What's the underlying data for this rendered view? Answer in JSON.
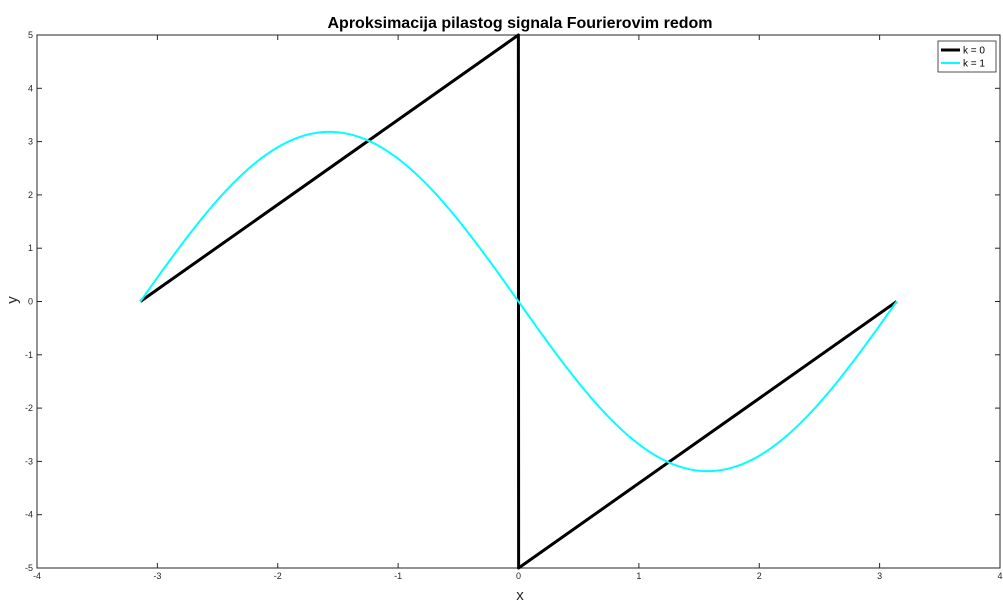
{
  "chart_data": {
    "type": "line",
    "title": "Aproksimacija pilastog signala Fourierovim redom",
    "xlabel": "x",
    "ylabel": "y",
    "xlim": [
      -4,
      4
    ],
    "ylim": [
      -5,
      5
    ],
    "xticks": [
      "-4",
      "-3",
      "-2",
      "-1",
      "0",
      "1",
      "2",
      "3",
      "4"
    ],
    "yticks": [
      "5",
      "4",
      "3",
      "2",
      "1",
      "0",
      "-1",
      "-2",
      "-3",
      "-4",
      "-5"
    ],
    "grid": false,
    "legend_position": "top-right",
    "series": [
      {
        "name": "k = 0",
        "color": "#000000",
        "x": [
          -3.1416,
          -0.001,
          0,
          0.001,
          3.1416
        ],
        "y": [
          0,
          5,
          0,
          -5,
          0
        ]
      },
      {
        "name": "k = 1",
        "color": "#00ffff",
        "x": [
          -3.1416,
          -2.7489,
          -2.3562,
          -1.9635,
          -1.5708,
          -1.1781,
          -0.7854,
          -0.3927,
          0,
          0.3927,
          0.7854,
          1.1781,
          1.5708,
          1.9635,
          2.3562,
          2.7489,
          3.1416
        ],
        "y": [
          0,
          1.218,
          2.251,
          2.941,
          3.183,
          2.941,
          2.251,
          1.218,
          0,
          -1.218,
          -2.251,
          -2.941,
          -3.183,
          -2.941,
          -2.251,
          -1.218,
          0
        ]
      }
    ]
  }
}
